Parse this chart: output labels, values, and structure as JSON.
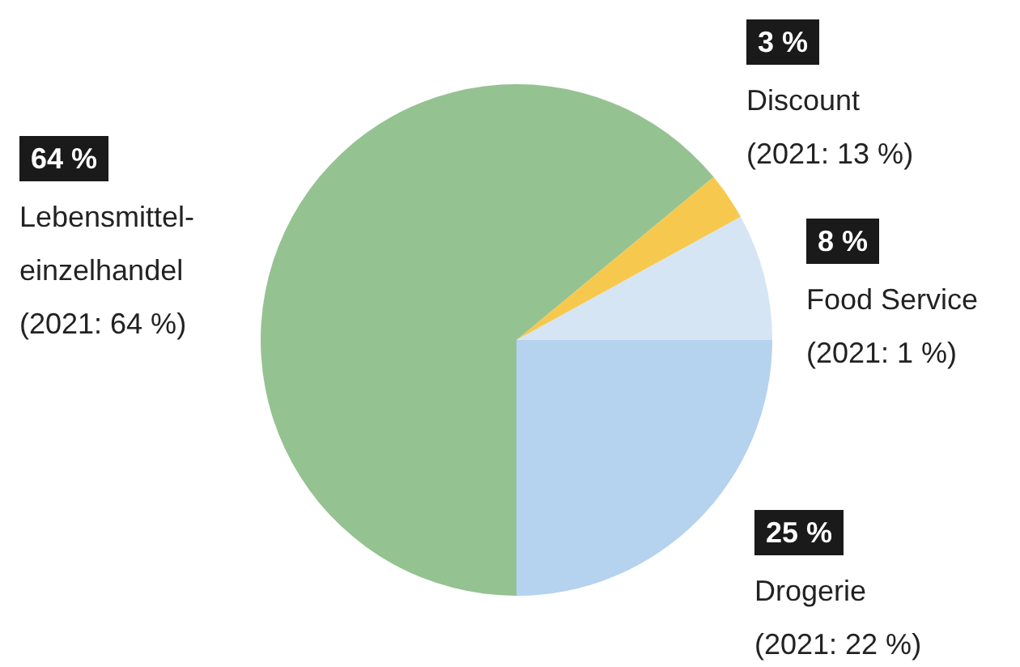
{
  "chart_data": {
    "type": "pie",
    "categories": [
      "Food Service",
      "Discount",
      "Lebensmittel-\neinzelhandel",
      "Drogerie"
    ],
    "values": [
      8,
      3,
      64,
      25
    ],
    "colors": [
      "#d6e5f4",
      "#f6c94e",
      "#95c291",
      "#b5d2ef"
    ],
    "value_labels": [
      "8 %",
      "3 %",
      "64 %",
      "25 %"
    ],
    "annotations": [
      "(2021: 1 %)",
      "(2021: 13 %)",
      "(2021: 64 %)",
      "(2021: 22 %)"
    ]
  }
}
